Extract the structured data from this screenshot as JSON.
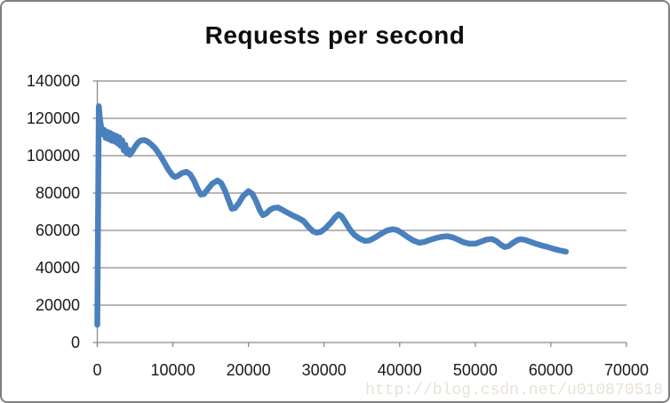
{
  "chart_data": {
    "type": "line",
    "title": "Requests per second",
    "xlabel": "",
    "ylabel": "",
    "xlim": [
      0,
      70000
    ],
    "ylim": [
      0,
      140000
    ],
    "x_ticks": [
      0,
      10000,
      20000,
      30000,
      40000,
      50000,
      60000,
      70000
    ],
    "y_ticks": [
      0,
      20000,
      40000,
      60000,
      80000,
      100000,
      120000,
      140000
    ],
    "grid": "horizontal-only",
    "legend": "none",
    "series": [
      {
        "name": "Requests per second",
        "color": "#4a80bd",
        "points": [
          [
            0,
            9500
          ],
          [
            200,
            126500
          ],
          [
            350,
            119500
          ],
          [
            500,
            115500
          ],
          [
            700,
            111500
          ],
          [
            900,
            113800
          ],
          [
            1100,
            109500
          ],
          [
            1300,
            112800
          ],
          [
            1500,
            108800
          ],
          [
            1700,
            112200
          ],
          [
            1900,
            108000
          ],
          [
            2100,
            111300
          ],
          [
            2300,
            107500
          ],
          [
            2500,
            110600
          ],
          [
            2700,
            106500
          ],
          [
            2900,
            109800
          ],
          [
            3100,
            105200
          ],
          [
            3300,
            108200
          ],
          [
            3500,
            102800
          ],
          [
            3700,
            105800
          ],
          [
            3900,
            101200
          ],
          [
            4100,
            103200
          ],
          [
            4300,
            100500
          ],
          [
            4700,
            102800
          ],
          [
            5000,
            104800
          ],
          [
            5400,
            107000
          ],
          [
            5800,
            108200
          ],
          [
            6200,
            108400
          ],
          [
            6600,
            107700
          ],
          [
            7000,
            106500
          ],
          [
            7600,
            104200
          ],
          [
            8200,
            100800
          ],
          [
            8800,
            96800
          ],
          [
            9400,
            92500
          ],
          [
            10000,
            89300
          ],
          [
            10300,
            88600
          ],
          [
            10700,
            89300
          ],
          [
            11200,
            90700
          ],
          [
            11800,
            91400
          ],
          [
            12300,
            90000
          ],
          [
            12800,
            86500
          ],
          [
            13300,
            82000
          ],
          [
            13700,
            79200
          ],
          [
            14100,
            79500
          ],
          [
            14600,
            82000
          ],
          [
            15200,
            85000
          ],
          [
            15900,
            86700
          ],
          [
            16400,
            85300
          ],
          [
            16900,
            81200
          ],
          [
            17400,
            75800
          ],
          [
            17800,
            71600
          ],
          [
            18200,
            71900
          ],
          [
            18700,
            74500
          ],
          [
            19300,
            78500
          ],
          [
            20000,
            81000
          ],
          [
            20500,
            79600
          ],
          [
            21000,
            75800
          ],
          [
            21500,
            70800
          ],
          [
            21900,
            68200
          ],
          [
            22300,
            68900
          ],
          [
            22800,
            70900
          ],
          [
            23300,
            72000
          ],
          [
            23900,
            72300
          ],
          [
            24500,
            71000
          ],
          [
            25200,
            69400
          ],
          [
            25900,
            67900
          ],
          [
            26600,
            66600
          ],
          [
            27300,
            65000
          ],
          [
            28000,
            61600
          ],
          [
            28500,
            59600
          ],
          [
            29000,
            58800
          ],
          [
            29600,
            59300
          ],
          [
            30200,
            61200
          ],
          [
            30900,
            64200
          ],
          [
            31500,
            67200
          ],
          [
            31900,
            68600
          ],
          [
            32300,
            67600
          ],
          [
            32800,
            64600
          ],
          [
            33400,
            60600
          ],
          [
            34000,
            57600
          ],
          [
            34700,
            55600
          ],
          [
            35400,
            54400
          ],
          [
            36000,
            54600
          ],
          [
            36700,
            56100
          ],
          [
            37500,
            58100
          ],
          [
            38300,
            59900
          ],
          [
            39100,
            60600
          ],
          [
            39700,
            60100
          ],
          [
            40300,
            58600
          ],
          [
            41000,
            56600
          ],
          [
            41800,
            54600
          ],
          [
            42600,
            53400
          ],
          [
            43300,
            53900
          ],
          [
            44000,
            54900
          ],
          [
            44800,
            55900
          ],
          [
            45600,
            56600
          ],
          [
            46300,
            56900
          ],
          [
            47000,
            56300
          ],
          [
            47700,
            55100
          ],
          [
            48400,
            53700
          ],
          [
            49200,
            52900
          ],
          [
            50000,
            52900
          ],
          [
            50700,
            53900
          ],
          [
            51500,
            55100
          ],
          [
            52200,
            55400
          ],
          [
            52800,
            54300
          ],
          [
            53400,
            52300
          ],
          [
            53900,
            51100
          ],
          [
            54400,
            51600
          ],
          [
            55000,
            53400
          ],
          [
            55600,
            54900
          ],
          [
            56000,
            55300
          ],
          [
            56600,
            54900
          ],
          [
            57300,
            53900
          ],
          [
            58000,
            52900
          ],
          [
            58800,
            51900
          ],
          [
            59600,
            51100
          ],
          [
            60400,
            50100
          ],
          [
            61200,
            49300
          ],
          [
            62000,
            48600
          ]
        ]
      }
    ]
  },
  "watermark": {
    "text": "http://blog.csdn.net/u010870518",
    "color": "#e8e2d8"
  },
  "colors": {
    "background": "#ffffff",
    "frame_border": "#7f7f7f",
    "grid": "#8a8a8a",
    "axis": "#8a8a8a",
    "tick_label": "#1a1a1a",
    "title": "#0d0d0d",
    "series_blue": "#4a80bd"
  }
}
